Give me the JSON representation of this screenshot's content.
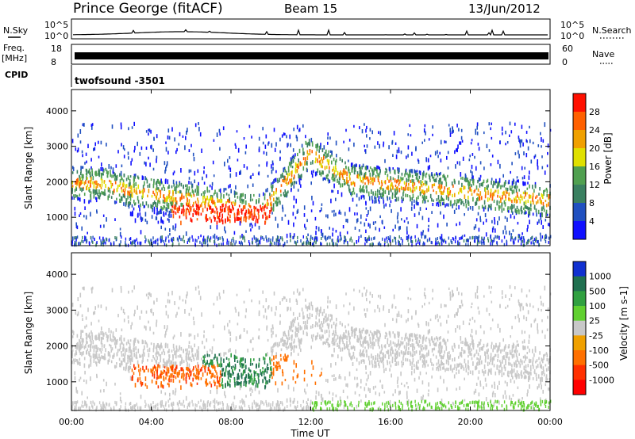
{
  "header": {
    "station": "Prince George (fitACF)",
    "beam": "Beam 15",
    "date": "13/Jun/2012"
  },
  "strips": {
    "nsky_label": "N.Sky",
    "nsearch_label": "N.Search",
    "freq_label_1": "Freq.",
    "freq_label_2": "[MHz]",
    "nave_label": "Nave",
    "cpid_label": "CPID",
    "cpid_value": "twofsound -3501",
    "noise_ticks": [
      "10^5",
      "10^0"
    ],
    "freq_ticks": [
      "18",
      "8"
    ],
    "nave_ticks": [
      "60",
      "0"
    ],
    "series_colors": {
      "noise": "#000000",
      "freq": "#000000"
    }
  },
  "chart_data": [
    {
      "type": "heatmap",
      "panel": "power",
      "xlabel": "",
      "ylabel": "Slant Range [km]",
      "xlim": [
        0,
        24
      ],
      "ylim": [
        200,
        4600
      ],
      "y_ticks": [
        "1000",
        "2000",
        "3000",
        "4000"
      ],
      "colorbar": {
        "label": "Power [dB]",
        "ticks": [
          "4",
          "8",
          "12",
          "16",
          "20",
          "24",
          "28"
        ],
        "colors": [
          "#1010ff",
          "#2050c0",
          "#3a8060",
          "#50a050",
          "#e0e000",
          "#f0a000",
          "#ff6000",
          "#ff1000"
        ]
      }
    },
    {
      "type": "heatmap",
      "panel": "velocity",
      "xlabel": "Time UT",
      "ylabel": "Slant Range [km]",
      "xlim": [
        0,
        24
      ],
      "ylim": [
        200,
        4600
      ],
      "x_ticks": [
        "00:00",
        "04:00",
        "08:00",
        "12:00",
        "16:00",
        "20:00",
        "00:00"
      ],
      "y_ticks": [
        "1000",
        "2000",
        "3000",
        "4000"
      ],
      "colorbar": {
        "label": "Velocity [m s-1]",
        "ticks": [
          "1000",
          "500",
          "100",
          "25",
          "-25",
          "-100",
          "-500",
          "-1000"
        ],
        "colors": [
          "#1030d0",
          "#207050",
          "#30a040",
          "#60d030",
          "#c8c8c8",
          "#f0a000",
          "#ff7000",
          "#ff3000",
          "#ff0000"
        ]
      }
    }
  ]
}
